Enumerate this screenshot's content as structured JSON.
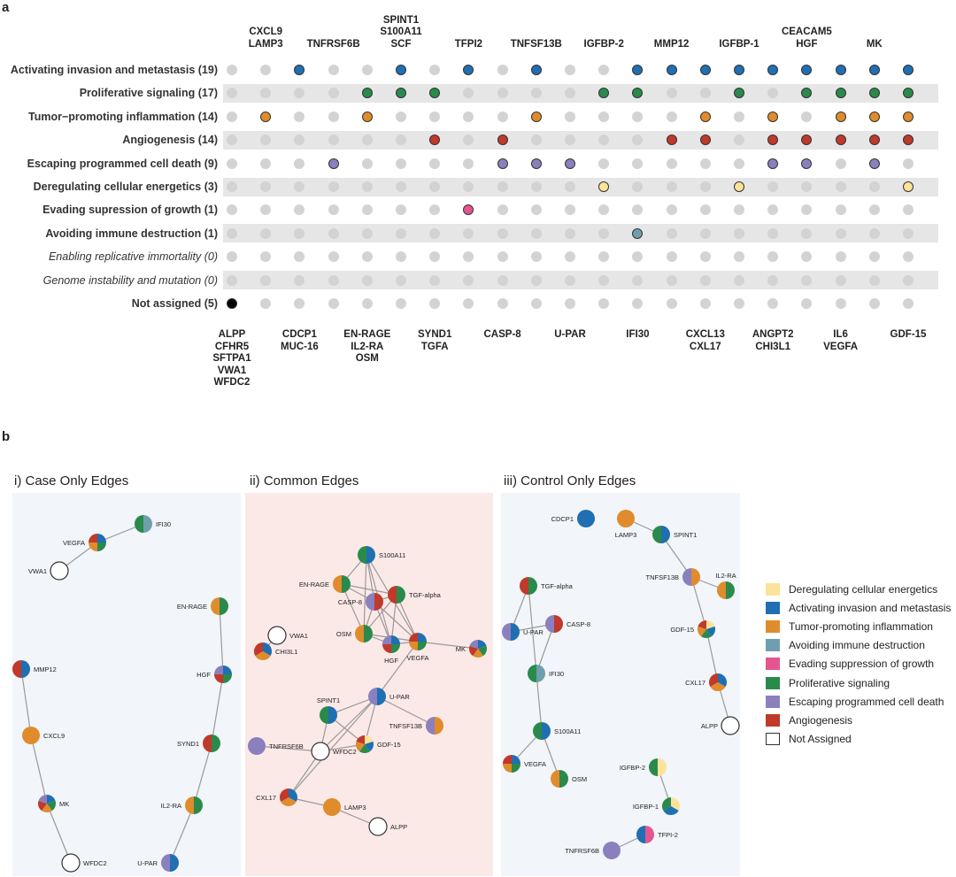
{
  "panel_a": {
    "letter": "a",
    "top_labels": [
      "CXCL9\nLAMP3",
      "TNFRSF6B",
      "SPINT1\nS100A11\nSCF",
      "TFPI2",
      "TNFSF13B",
      "IGFBP-2",
      "MMP12",
      "IGFBP-1",
      "CEACAM5\nHGF",
      "MK"
    ],
    "bottom_labels": [
      "ALPP\nCFHR5\nSFTPA1\nVWA1\nWFDC2",
      "CDCP1\nMUC-16",
      "EN-RAGE\nIL2-RA\nOSM",
      "SYND1\nTGFA",
      "CASP-8",
      "U-PAR",
      "IFI30",
      "CXCL13\nCXL17",
      "ANGPT2\nCHI3L1",
      "IL6\nVEGFA",
      "GDF-15"
    ],
    "rows": [
      {
        "label": "Activating invasion and metastasis (19)",
        "style": "bold"
      },
      {
        "label": "Proliferative signaling (17)",
        "style": "bold"
      },
      {
        "label": "Tumor−promoting inflammation (14)",
        "style": "bold"
      },
      {
        "label": "Angiogenesis (14)",
        "style": "bold"
      },
      {
        "label": "Escaping programmed cell death (9)",
        "style": "bold"
      },
      {
        "label": "Deregulating cellular energetics (3)",
        "style": "bold"
      },
      {
        "label": "Evading supression of growth (1)",
        "style": "bold"
      },
      {
        "label": "Avoiding immune destruction (1)",
        "style": "bold"
      },
      {
        "label": "Enabling replicative immortality (0)",
        "style": "italic"
      },
      {
        "label": "Genome instability and mutation (0)",
        "style": "italic"
      },
      {
        "label": "Not assigned (5)",
        "style": "bold"
      }
    ],
    "row_colors": [
      "#1f6fb2",
      "#2a8a4b",
      "#e08b2c",
      "#c0392b",
      "#8a80be",
      "#fbe39a",
      "#e5558e",
      "#6f9fae",
      null,
      null,
      "#000000"
    ],
    "matrix": [
      [
        0,
        0,
        1,
        0,
        0,
        1,
        0,
        1,
        0,
        1,
        0,
        0,
        1,
        1,
        1,
        1,
        1,
        1,
        1,
        1,
        1
      ],
      [
        0,
        0,
        0,
        0,
        1,
        1,
        1,
        0,
        0,
        0,
        0,
        1,
        1,
        0,
        0,
        1,
        0,
        1,
        1,
        1,
        1
      ],
      [
        0,
        1,
        0,
        0,
        1,
        0,
        0,
        0,
        0,
        1,
        0,
        0,
        0,
        0,
        1,
        0,
        1,
        0,
        1,
        1,
        1
      ],
      [
        0,
        0,
        0,
        0,
        0,
        0,
        1,
        0,
        1,
        0,
        0,
        0,
        0,
        1,
        1,
        0,
        1,
        1,
        1,
        1,
        1
      ],
      [
        0,
        0,
        0,
        1,
        0,
        0,
        0,
        0,
        1,
        1,
        1,
        0,
        0,
        0,
        0,
        0,
        1,
        1,
        0,
        1,
        0
      ],
      [
        0,
        0,
        0,
        0,
        0,
        0,
        0,
        0,
        0,
        0,
        0,
        1,
        0,
        0,
        0,
        1,
        0,
        0,
        0,
        0,
        1
      ],
      [
        0,
        0,
        0,
        0,
        0,
        0,
        0,
        1,
        0,
        0,
        0,
        0,
        0,
        0,
        0,
        0,
        0,
        0,
        0,
        0,
        0
      ],
      [
        0,
        0,
        0,
        0,
        0,
        0,
        0,
        0,
        0,
        0,
        0,
        0,
        1,
        0,
        0,
        0,
        0,
        0,
        0,
        0,
        0
      ],
      [
        0,
        0,
        0,
        0,
        0,
        0,
        0,
        0,
        0,
        0,
        0,
        0,
        0,
        0,
        0,
        0,
        0,
        0,
        0,
        0,
        0
      ],
      [
        0,
        0,
        0,
        0,
        0,
        0,
        0,
        0,
        0,
        0,
        0,
        0,
        0,
        0,
        0,
        0,
        0,
        0,
        0,
        0,
        0
      ],
      [
        1,
        0,
        0,
        0,
        0,
        0,
        0,
        0,
        0,
        0,
        0,
        0,
        0,
        0,
        0,
        0,
        0,
        0,
        0,
        0,
        0
      ]
    ]
  },
  "panel_b": {
    "letter": "b",
    "titles": [
      "i) Case Only Edges",
      "ii) Common Edges",
      "iii) Control Only Edges"
    ],
    "legend": [
      {
        "label": "Deregulating cellular energetics",
        "color": "#fbe39a"
      },
      {
        "label": "Activating invasion and metastasis",
        "color": "#1f6fb2"
      },
      {
        "label": "Tumor-promoting inflammation",
        "color": "#e08b2c"
      },
      {
        "label": "Avoiding immune destruction",
        "color": "#6f9fae"
      },
      {
        "label": "Evading suppression of growth",
        "color": "#e5558e"
      },
      {
        "label": "Proliferative signaling",
        "color": "#2a8a4b"
      },
      {
        "label": "Escaping programmed cell death",
        "color": "#8a80be"
      },
      {
        "label": "Angiogenesis",
        "color": "#c0392b"
      },
      {
        "label": "Not Assigned",
        "color": "#ffffff"
      }
    ],
    "networks": [
      {
        "nodes": [
          {
            "id": "IFI30",
            "colors": [
              "#6f9fae",
              "#2a8a4b"
            ]
          },
          {
            "id": "VEGFA",
            "colors": [
              "#1f6fb2",
              "#2a8a4b",
              "#e08b2c",
              "#c0392b"
            ]
          },
          {
            "id": "VWA1",
            "colors": []
          },
          {
            "id": "EN-RAGE",
            "colors": [
              "#2a8a4b",
              "#e08b2c"
            ]
          },
          {
            "id": "HGF",
            "colors": [
              "#1f6fb2",
              "#2a8a4b",
              "#c0392b",
              "#8a80be"
            ]
          },
          {
            "id": "MMP12",
            "colors": [
              "#1f6fb2",
              "#c0392b"
            ]
          },
          {
            "id": "CXCL9",
            "colors": [
              "#e08b2c"
            ]
          },
          {
            "id": "SYND1",
            "colors": [
              "#2a8a4b",
              "#c0392b"
            ]
          },
          {
            "id": "MK",
            "colors": [
              "#1f6fb2",
              "#2a8a4b",
              "#e08b2c",
              "#c0392b",
              "#8a80be"
            ]
          },
          {
            "id": "IL2-RA",
            "colors": [
              "#2a8a4b",
              "#e08b2c"
            ]
          },
          {
            "id": "WFDC2",
            "colors": []
          },
          {
            "id": "U-PAR",
            "colors": [
              "#1f6fb2",
              "#8a80be"
            ]
          }
        ],
        "edges": [
          [
            "IFI30",
            "VEGFA"
          ],
          [
            "VEGFA",
            "VWA1"
          ],
          [
            "EN-RAGE",
            "HGF"
          ],
          [
            "HGF",
            "SYND1"
          ],
          [
            "SYND1",
            "IL2-RA"
          ],
          [
            "IL2-RA",
            "U-PAR"
          ],
          [
            "MMP12",
            "CXCL9"
          ],
          [
            "CXCL9",
            "MK"
          ],
          [
            "MK",
            "WFDC2"
          ]
        ]
      },
      {
        "nodes": [
          {
            "id": "S100A11",
            "colors": [
              "#1f6fb2",
              "#2a8a4b"
            ]
          },
          {
            "id": "EN-RAGE",
            "colors": [
              "#2a8a4b",
              "#e08b2c"
            ]
          },
          {
            "id": "TGF-alpha",
            "colors": [
              "#2a8a4b",
              "#c0392b"
            ]
          },
          {
            "id": "CASP-8",
            "colors": [
              "#c0392b",
              "#8a80be"
            ]
          },
          {
            "id": "VWA1",
            "colors": []
          },
          {
            "id": "OSM",
            "colors": [
              "#2a8a4b",
              "#e08b2c"
            ]
          },
          {
            "id": "HGF",
            "colors": [
              "#1f6fb2",
              "#2a8a4b",
              "#c0392b",
              "#8a80be"
            ]
          },
          {
            "id": "VEGFA",
            "colors": [
              "#1f6fb2",
              "#2a8a4b",
              "#e08b2c",
              "#c0392b"
            ]
          },
          {
            "id": "MK",
            "colors": [
              "#1f6fb2",
              "#2a8a4b",
              "#e08b2c",
              "#c0392b",
              "#8a80be"
            ]
          },
          {
            "id": "CHI3L1",
            "colors": [
              "#1f6fb2",
              "#e08b2c",
              "#c0392b"
            ]
          },
          {
            "id": "U-PAR",
            "colors": [
              "#1f6fb2",
              "#8a80be"
            ]
          },
          {
            "id": "SPINT1",
            "colors": [
              "#1f6fb2",
              "#2a8a4b"
            ]
          },
          {
            "id": "TNFSF13B",
            "colors": [
              "#e08b2c",
              "#8a80be"
            ]
          },
          {
            "id": "TNFRSF6B",
            "colors": [
              "#8a80be"
            ]
          },
          {
            "id": "WFDC2",
            "colors": []
          },
          {
            "id": "GDF-15",
            "colors": [
              "#fbe39a",
              "#1f6fb2",
              "#2a8a4b",
              "#e08b2c",
              "#c0392b"
            ]
          },
          {
            "id": "CXL17",
            "colors": [
              "#1f6fb2",
              "#e08b2c",
              "#c0392b"
            ]
          },
          {
            "id": "LAMP3",
            "colors": [
              "#e08b2c"
            ]
          },
          {
            "id": "ALPP",
            "colors": []
          }
        ],
        "edges": [
          [
            "S100A11",
            "EN-RAGE"
          ],
          [
            "S100A11",
            "CASP-8"
          ],
          [
            "S100A11",
            "OSM"
          ],
          [
            "S100A11",
            "HGF"
          ],
          [
            "S100A11",
            "VEGFA"
          ],
          [
            "EN-RAGE",
            "TGF-alpha"
          ],
          [
            "EN-RAGE",
            "OSM"
          ],
          [
            "EN-RAGE",
            "CASP-8"
          ],
          [
            "TGF-alpha",
            "CASP-8"
          ],
          [
            "TGF-alpha",
            "HGF"
          ],
          [
            "TGF-alpha",
            "VEGFA"
          ],
          [
            "TGF-alpha",
            "OSM"
          ],
          [
            "CASP-8",
            "OSM"
          ],
          [
            "CASP-8",
            "HGF"
          ],
          [
            "CASP-8",
            "VEGFA"
          ],
          [
            "OSM",
            "HGF"
          ],
          [
            "OSM",
            "VEGFA"
          ],
          [
            "HGF",
            "VEGFA"
          ],
          [
            "VEGFA",
            "MK"
          ],
          [
            "VEGFA",
            "U-PAR"
          ],
          [
            "VWA1",
            "CHI3L1"
          ],
          [
            "U-PAR",
            "SPINT1"
          ],
          [
            "U-PAR",
            "TNFSF13B"
          ],
          [
            "U-PAR",
            "GDF-15"
          ],
          [
            "U-PAR",
            "WFDC2"
          ],
          [
            "U-PAR",
            "CXL17"
          ],
          [
            "SPINT1",
            "WFDC2"
          ],
          [
            "SPINT1",
            "GDF-15"
          ],
          [
            "TNFRSF6B",
            "WFDC2"
          ],
          [
            "WFDC2",
            "GDF-15"
          ],
          [
            "WFDC2",
            "CXL17"
          ],
          [
            "CXL17",
            "LAMP3"
          ],
          [
            "LAMP3",
            "ALPP"
          ]
        ]
      },
      {
        "nodes": [
          {
            "id": "CDCP1",
            "colors": [
              "#1f6fb2"
            ]
          },
          {
            "id": "LAMP3",
            "colors": [
              "#e08b2c"
            ]
          },
          {
            "id": "SPINT1",
            "colors": [
              "#1f6fb2",
              "#2a8a4b"
            ]
          },
          {
            "id": "TGF-alpha",
            "colors": [
              "#2a8a4b",
              "#c0392b"
            ]
          },
          {
            "id": "IL2-RA",
            "colors": [
              "#2a8a4b",
              "#e08b2c"
            ]
          },
          {
            "id": "TNFSF13B",
            "colors": [
              "#e08b2c",
              "#8a80be"
            ]
          },
          {
            "id": "CASP-8",
            "colors": [
              "#c0392b",
              "#8a80be"
            ]
          },
          {
            "id": "U-PAR",
            "colors": [
              "#1f6fb2",
              "#8a80be"
            ]
          },
          {
            "id": "GDF-15",
            "colors": [
              "#fbe39a",
              "#1f6fb2",
              "#2a8a4b",
              "#e08b2c",
              "#c0392b"
            ]
          },
          {
            "id": "IFI30",
            "colors": [
              "#6f9fae",
              "#2a8a4b"
            ]
          },
          {
            "id": "CXL17",
            "colors": [
              "#1f6fb2",
              "#e08b2c",
              "#c0392b"
            ]
          },
          {
            "id": "ALPP",
            "colors": []
          },
          {
            "id": "S100A11",
            "colors": [
              "#1f6fb2",
              "#2a8a4b"
            ]
          },
          {
            "id": "VEGFA",
            "colors": [
              "#1f6fb2",
              "#2a8a4b",
              "#e08b2c",
              "#c0392b"
            ]
          },
          {
            "id": "OSM",
            "colors": [
              "#2a8a4b",
              "#e08b2c"
            ]
          },
          {
            "id": "IGFBP-2",
            "colors": [
              "#fbe39a",
              "#2a8a4b"
            ]
          },
          {
            "id": "IGFBP-1",
            "colors": [
              "#fbe39a",
              "#1f6fb2",
              "#2a8a4b"
            ]
          },
          {
            "id": "TFPI-2",
            "colors": [
              "#e5558e",
              "#1f6fb2"
            ]
          },
          {
            "id": "TNFRSF6B",
            "colors": [
              "#8a80be"
            ]
          }
        ],
        "edges": [
          [
            "LAMP3",
            "SPINT1"
          ],
          [
            "SPINT1",
            "TNFSF13B"
          ],
          [
            "TNFSF13B",
            "IL2-RA"
          ],
          [
            "TNFSF13B",
            "GDF-15"
          ],
          [
            "GDF-15",
            "CXL17"
          ],
          [
            "CXL17",
            "ALPP"
          ],
          [
            "TGF-alpha",
            "U-PAR"
          ],
          [
            "TGF-alpha",
            "IFI30"
          ],
          [
            "U-PAR",
            "CASP-8"
          ],
          [
            "CASP-8",
            "IFI30"
          ],
          [
            "IFI30",
            "S100A11"
          ],
          [
            "S100A11",
            "VEGFA"
          ],
          [
            "S100A11",
            "OSM"
          ],
          [
            "IGFBP-2",
            "IGFBP-1"
          ],
          [
            "TFPI-2",
            "TNFRSF6B"
          ]
        ]
      }
    ]
  }
}
